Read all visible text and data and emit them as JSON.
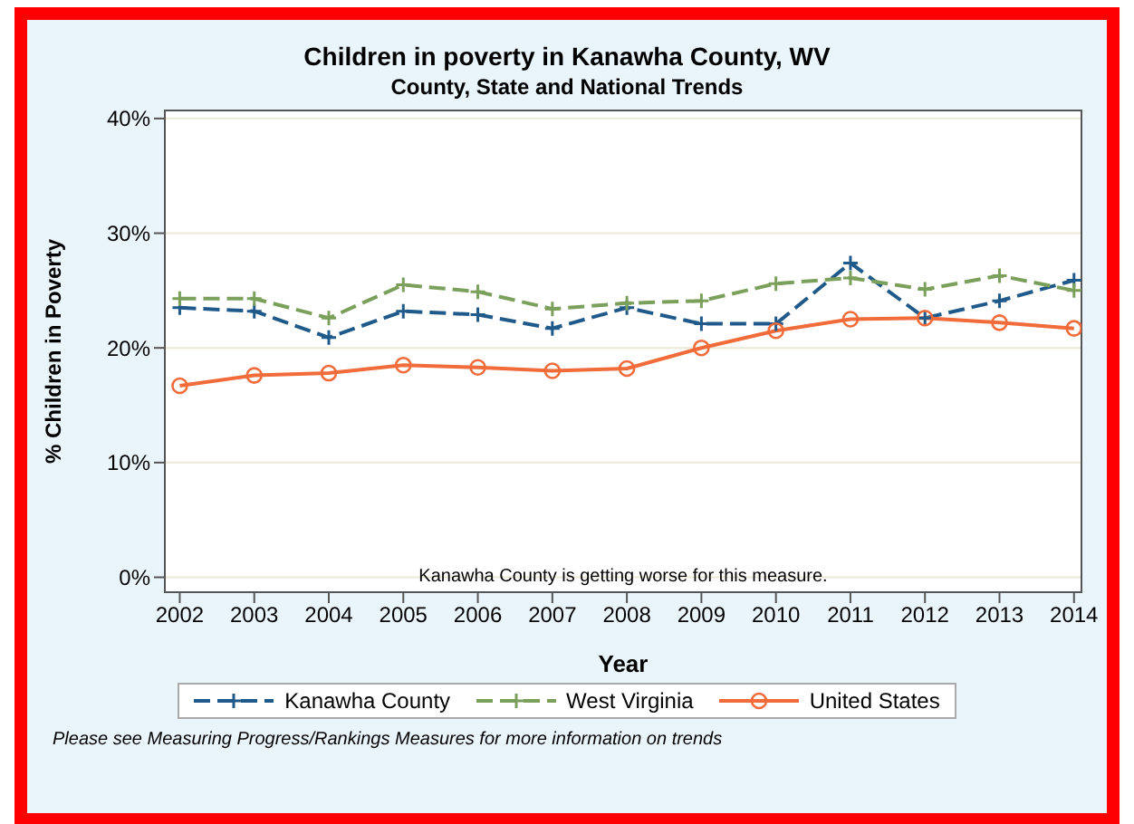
{
  "chart_data": {
    "type": "line",
    "title": "Children in poverty in Kanawha County, WV",
    "subtitle": "County, State and National Trends",
    "xlabel": "Year",
    "ylabel": "% Children in Poverty",
    "x": [
      2002,
      2003,
      2004,
      2005,
      2006,
      2007,
      2008,
      2009,
      2010,
      2011,
      2012,
      2013,
      2014
    ],
    "series": [
      {
        "name": "Kanawha County",
        "color": "#1f5a8a",
        "marker": "cross",
        "line_style": "dashed",
        "values": [
          23.5,
          23.2,
          20.9,
          23.2,
          22.9,
          21.7,
          23.5,
          22.1,
          22.1,
          27.4,
          22.6,
          24.1,
          25.9
        ]
      },
      {
        "name": "West Virginia",
        "color": "#7ba05b",
        "marker": "cross",
        "line_style": "dashed",
        "values": [
          24.3,
          24.3,
          22.6,
          25.5,
          24.9,
          23.4,
          23.9,
          24.1,
          25.6,
          26.1,
          25.1,
          26.3,
          25.0
        ]
      },
      {
        "name": "United States",
        "color": "#f26b3a",
        "marker": "circle",
        "line_style": "solid",
        "values": [
          16.7,
          17.6,
          17.8,
          18.5,
          18.3,
          18.0,
          18.2,
          20.0,
          21.5,
          22.5,
          22.6,
          22.2,
          21.7
        ]
      }
    ],
    "xlim": [
      2001.8,
      2014.1
    ],
    "xticks": [
      2002,
      2003,
      2004,
      2005,
      2006,
      2007,
      2008,
      2009,
      2010,
      2011,
      2012,
      2013,
      2014
    ],
    "ylim": [
      -1.3,
      40.7
    ],
    "yticks": [
      {
        "value": 0,
        "label": "0%"
      },
      {
        "value": 10,
        "label": "10%"
      },
      {
        "value": 20,
        "label": "20%"
      },
      {
        "value": 30,
        "label": "30%"
      },
      {
        "value": 40,
        "label": "40%"
      }
    ],
    "grid": "y",
    "legend": "bottom",
    "annotations": [
      "Kanawha County is getting worse for this measure.",
      "Please see Measuring Progress/Rankings Measures for more information on trends"
    ]
  }
}
